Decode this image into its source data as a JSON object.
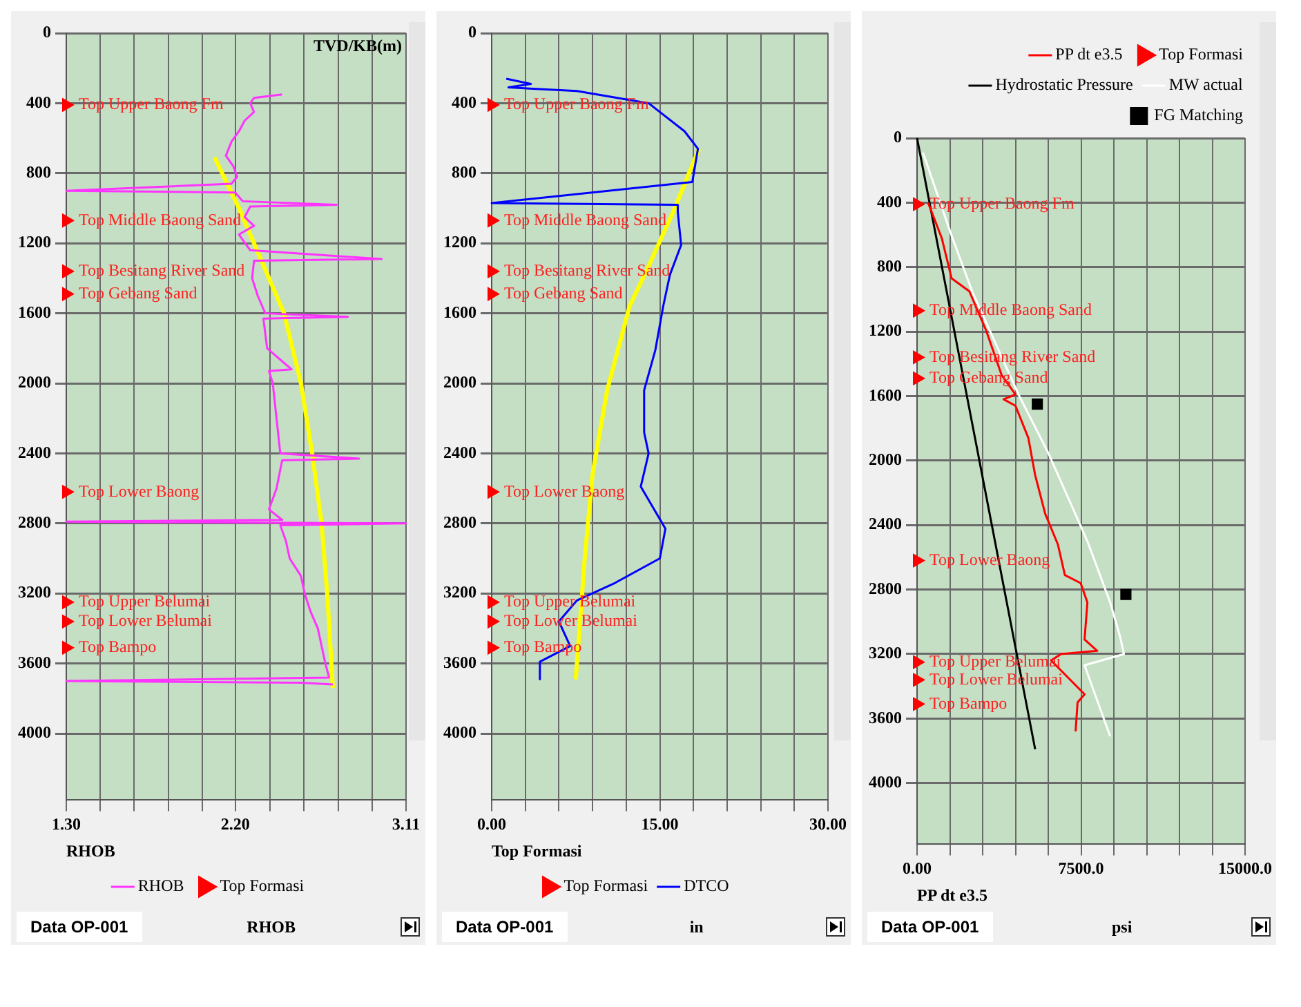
{
  "chart_data": [
    {
      "type": "line",
      "ylabel": "TVD/KB(m)",
      "xlabel": "RHOB",
      "xlim": [
        1.3,
        3.11
      ],
      "ylim": [
        4380,
        0
      ],
      "xticks": [
        {
          "value": 1.3,
          "label": "1.30"
        },
        {
          "value": 1.481,
          "label": null
        },
        {
          "value": 1.662,
          "label": null
        },
        {
          "value": 1.843,
          "label": null
        },
        {
          "value": 2.024,
          "label": null
        },
        {
          "value": 2.2,
          "label": "2.20"
        },
        {
          "value": 2.386,
          "label": null
        },
        {
          "value": 2.567,
          "label": null
        },
        {
          "value": 2.748,
          "label": null
        },
        {
          "value": 2.929,
          "label": null
        },
        {
          "value": 3.11,
          "label": "3.11"
        }
      ],
      "yticks": [
        0,
        400,
        800,
        1200,
        1600,
        2000,
        2400,
        2800,
        3200,
        3600,
        4000
      ],
      "grid": true,
      "legend": "bottom",
      "marker": "none",
      "line_style": "solid",
      "series": [
        {
          "name": "RHOB",
          "color": "#ff33ff",
          "type": "line",
          "x": [
            2.45,
            2.3,
            2.28,
            2.3,
            2.25,
            2.22,
            2.18,
            2.15,
            2.19,
            2.21,
            2.18,
            1.3,
            2.2,
            2.24,
            2.74,
            2.28,
            2.25,
            2.3,
            2.22,
            2.28,
            2.98,
            2.3,
            2.29,
            2.32,
            2.36,
            2.8,
            2.35,
            2.37,
            2.5,
            2.38,
            2.4,
            2.42,
            2.44,
            2.86,
            2.45,
            2.42,
            2.38,
            2.45,
            1.3,
            3.11,
            2.44,
            2.47,
            2.49,
            2.55,
            2.57,
            2.6,
            2.64,
            2.66,
            2.68,
            2.7,
            1.3,
            2.55,
            2.72
          ],
          "values": [
            350,
            370,
            400,
            450,
            500,
            560,
            620,
            700,
            760,
            820,
            860,
            900,
            910,
            960,
            980,
            990,
            1050,
            1100,
            1150,
            1240,
            1290,
            1300,
            1400,
            1500,
            1600,
            1620,
            1630,
            1800,
            1920,
            1930,
            2000,
            2200,
            2400,
            2430,
            2440,
            2600,
            2720,
            2780,
            2790,
            2800,
            2810,
            2900,
            3000,
            3100,
            3200,
            3300,
            3400,
            3500,
            3600,
            3680,
            3700,
            3710,
            3720
          ]
        },
        {
          "color": "#ffff00",
          "type": "line",
          "x": [
            2.09,
            2.22,
            2.3,
            2.46,
            2.55,
            2.61,
            2.66,
            2.69,
            2.72
          ],
          "values": [
            710,
            1000,
            1200,
            1600,
            2000,
            2400,
            2800,
            3200,
            3740
          ]
        },
        {
          "name": "Top Formasi",
          "color": "#ff0000",
          "type": "scatter",
          "marker": "triangle",
          "x": [
            1.3,
            1.3,
            1.3,
            1.3,
            1.3,
            1.3,
            1.3,
            1.3
          ],
          "values": [
            410,
            1070,
            1360,
            1490,
            2620,
            3250,
            3360,
            3510
          ],
          "value_labels": [
            "Top Upper Baong Fm",
            "Top Middle Baong Sand",
            "Top Besitang River Sand",
            "Top Gebang Sand",
            "Top Lower Baong",
            "Top Upper Belumai",
            "Top Lower Belumai",
            "Top Bampo"
          ]
        }
      ],
      "annotations": [
        "RHOB",
        "Data OP-001"
      ]
    },
    {
      "type": "line",
      "xlabel": "Top Formasi",
      "xlim": [
        0,
        30
      ],
      "ylim": [
        4380,
        0
      ],
      "xticks": [
        {
          "value": 0,
          "label": "0.00"
        },
        {
          "value": 3,
          "label": null
        },
        {
          "value": 6,
          "label": null
        },
        {
          "value": 9,
          "label": null
        },
        {
          "value": 12,
          "label": null
        },
        {
          "value": 15,
          "label": "15.00"
        },
        {
          "value": 18,
          "label": null
        },
        {
          "value": 21,
          "label": null
        },
        {
          "value": 24,
          "label": null
        },
        {
          "value": 27,
          "label": null
        },
        {
          "value": 30,
          "label": "30.00"
        }
      ],
      "yticks": [
        0,
        400,
        800,
        1200,
        1600,
        2000,
        2400,
        2800,
        3200,
        3600,
        4000
      ],
      "grid": true,
      "legend": "bottom",
      "marker": "none",
      "line_style": "solid",
      "series": [
        {
          "name": "Top Formasi",
          "color": "#ff0000",
          "type": "scatter",
          "marker": "triangle",
          "x": [
            0,
            0,
            0,
            0,
            0,
            0,
            0,
            0
          ],
          "values": [
            410,
            1070,
            1360,
            1490,
            2620,
            3250,
            3360,
            3510
          ],
          "value_labels": [
            "Top Upper Baong Fm",
            "Top Middle Baong Sand",
            "Top Besitang River Sand",
            "Top Gebang Sand",
            "Top Lower Baong",
            "Top Upper Belumai",
            "Top Lower Belumai",
            "Top Bampo"
          ]
        },
        {
          "name": "DTCO",
          "color": "#0000ff",
          "type": "line",
          "x": [
            1.3,
            3.5,
            1.5,
            7.6,
            14.0,
            15.0,
            17.2,
            18.4,
            17.9,
            0.0,
            16.6,
            16.6,
            16.9,
            15.9,
            15.3,
            14.6,
            13.6,
            13.6,
            14.0,
            13.3,
            15.5,
            15.0,
            11.0,
            7.6,
            6.0,
            7.0,
            4.3,
            4.3
          ],
          "values": [
            260,
            290,
            310,
            330,
            400,
            450,
            560,
            660,
            850,
            970,
            980,
            1020,
            1210,
            1380,
            1560,
            1810,
            2040,
            2280,
            2400,
            2590,
            2830,
            3000,
            3140,
            3240,
            3360,
            3500,
            3590,
            3690
          ]
        },
        {
          "color": "#ffff00",
          "type": "line",
          "x": [
            18.5,
            16.2,
            14.0,
            12.3,
            10.3,
            9.0,
            8.3,
            7.5
          ],
          "values": [
            660,
            1020,
            1330,
            1560,
            2040,
            2520,
            3000,
            3690
          ]
        }
      ],
      "annotations": [
        "in",
        "Data OP-001"
      ]
    },
    {
      "type": "line",
      "xlabel": "PP dt e3.5",
      "xlim": [
        0,
        15000
      ],
      "ylim": [
        4380,
        0
      ],
      "xticks": [
        {
          "value": 0,
          "label": "0.00"
        },
        {
          "value": 1500,
          "label": null
        },
        {
          "value": 3000,
          "label": null
        },
        {
          "value": 4500,
          "label": null
        },
        {
          "value": 6000,
          "label": null
        },
        {
          "value": 7500,
          "label": "7500.0"
        },
        {
          "value": 9000,
          "label": null
        },
        {
          "value": 10500,
          "label": null
        },
        {
          "value": 12000,
          "label": null
        },
        {
          "value": 13500,
          "label": null
        },
        {
          "value": 15000,
          "label": "15000.0"
        }
      ],
      "yticks": [
        0,
        400,
        800,
        1200,
        1600,
        2000,
        2400,
        2800,
        3200,
        3600,
        4000
      ],
      "grid": true,
      "legend": "top right",
      "marker": "none",
      "line_style": "solid",
      "series": [
        {
          "name": "PP dt e3.5",
          "color": "#ff0000",
          "type": "line",
          "x": [
            500,
            590,
            1130,
            1580,
            2390,
            3150,
            3870,
            4500,
            3960,
            4500,
            5090,
            5400,
            5860,
            6440,
            6760,
            7480,
            7790,
            7660,
            8240,
            6580,
            6130,
            7660,
            7340,
            7250
          ],
          "values": [
            400,
            430,
            620,
            870,
            950,
            1190,
            1470,
            1590,
            1620,
            1660,
            1860,
            2090,
            2330,
            2520,
            2710,
            2760,
            2880,
            3110,
            3180,
            3200,
            3240,
            3450,
            3500,
            3680
          ]
        },
        {
          "name": "Top Formasi",
          "color": "#ff0000",
          "type": "scatter",
          "marker": "triangle",
          "x": [
            0,
            0,
            0,
            0,
            0,
            0,
            0,
            0
          ],
          "values": [
            410,
            1070,
            1360,
            1490,
            2620,
            3250,
            3360,
            3510
          ],
          "value_labels": [
            "Top Upper Baong Fm",
            "Top Middle Baong Sand",
            "Top Besitang River Sand",
            "Top Gebang Sand",
            "Top Lower Baong",
            "Top Upper Belumai",
            "Top Lower Belumai",
            "Top Bampo"
          ]
        },
        {
          "name": "Hydrostatic Pressure",
          "color": "#000000",
          "type": "line",
          "x": [
            0,
            5400
          ],
          "values": [
            0,
            3790
          ]
        },
        {
          "name": "MW actual",
          "color": "#ffffff",
          "type": "line",
          "x": [
            270,
            1620,
            2520,
            4640,
            5990,
            7790,
            8830,
            9280,
            9460,
            7660,
            8830
          ],
          "values": [
            90,
            620,
            950,
            1590,
            1950,
            2500,
            2880,
            3090,
            3200,
            3270,
            3710
          ]
        },
        {
          "name": "FG Matching",
          "color": "#000000",
          "type": "scatter",
          "marker": "square",
          "x": [
            5500,
            9550
          ],
          "values": [
            1650,
            2830
          ]
        }
      ],
      "annotations": [
        "psi",
        "Data OP-001"
      ]
    }
  ]
}
